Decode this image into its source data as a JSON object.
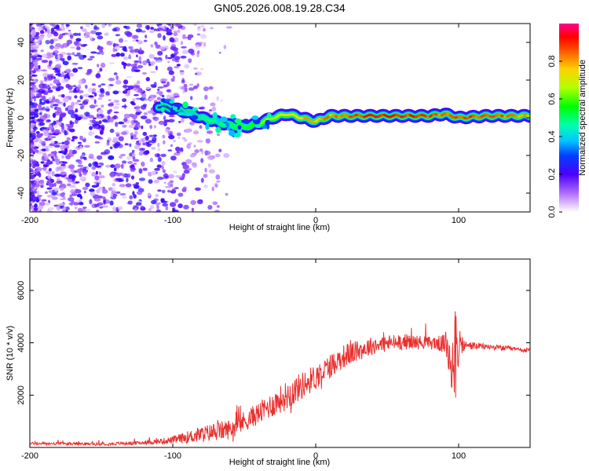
{
  "title": "GN05.2026.008.19.28.C34",
  "colors": {
    "snr_line": "#e8312f",
    "axis": "#000000",
    "background": "#ffffff"
  },
  "chart_data": [
    {
      "type": "heatmap",
      "name": "spectrogram",
      "xlabel": "Height of straight line (km)",
      "ylabel": "Frequency (Hz)",
      "xlim": [
        -200,
        150
      ],
      "ylim": [
        -50,
        50
      ],
      "x_ticks": [
        -200,
        -100,
        0,
        100
      ],
      "y_ticks": [
        -40,
        -20,
        0,
        20,
        40
      ],
      "colorbar": {
        "label": "Normalized spectral amplitude",
        "range": [
          0,
          1
        ],
        "ticks": [
          0.0,
          0.2,
          0.4,
          0.6,
          0.8
        ],
        "tick_labels": [
          "0.0",
          "0.2",
          "0.4",
          "0.6",
          "0.8"
        ]
      },
      "noise_region_x": [
        -200,
        -60
      ],
      "ridge": {
        "x": [
          -110,
          -100,
          -90,
          -80,
          -70,
          -60,
          -50,
          -40,
          -30,
          -20,
          -10,
          0,
          10,
          20,
          40,
          60,
          80,
          90,
          100,
          120,
          150
        ],
        "freq": [
          6,
          5,
          3,
          0,
          -2,
          -4,
          -5,
          -3,
          0,
          2,
          0,
          -2,
          1,
          1,
          1,
          1,
          1,
          2,
          0,
          1,
          1
        ],
        "amplitude": [
          0.3,
          0.35,
          0.4,
          0.45,
          0.5,
          0.5,
          0.55,
          0.6,
          0.7,
          0.75,
          0.8,
          0.82,
          0.85,
          0.9,
          0.95,
          0.95,
          0.9,
          0.85,
          0.9,
          0.9,
          0.85
        ]
      }
    },
    {
      "type": "line",
      "name": "snr",
      "xlabel": "Height of straight line (km)",
      "ylabel": "SNR (10 * v/v)",
      "xlim": [
        -200,
        150
      ],
      "ylim": [
        0,
        7200
      ],
      "x_ticks": [
        -200,
        -100,
        0,
        100
      ],
      "y_ticks": [
        2000,
        4000,
        6000
      ],
      "envelope": {
        "x": [
          -200,
          -150,
          -120,
          -100,
          -80,
          -60,
          -40,
          -20,
          0,
          20,
          40,
          60,
          80,
          90,
          95,
          98,
          100,
          105,
          120,
          150
        ],
        "mean": [
          150,
          130,
          180,
          280,
          500,
          700,
          1300,
          2000,
          2700,
          3500,
          3900,
          4050,
          4000,
          3950,
          3600,
          3800,
          3900,
          3900,
          3850,
          3700
        ],
        "noise": [
          80,
          80,
          100,
          200,
          450,
          550,
          600,
          800,
          700,
          650,
          500,
          450,
          350,
          500,
          2600,
          3300,
          900,
          250,
          150,
          130
        ]
      }
    }
  ]
}
